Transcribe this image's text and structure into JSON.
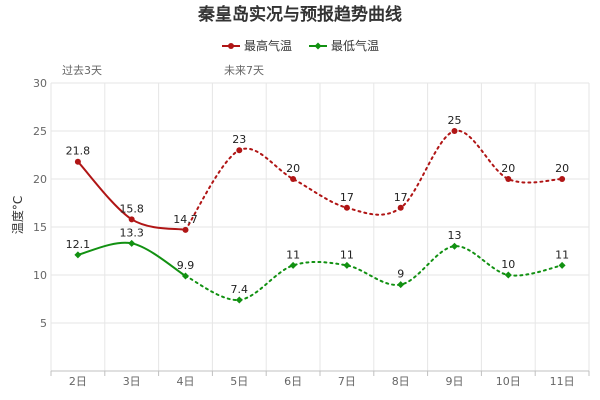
{
  "chart_data": {
    "type": "line",
    "title": "秦皇岛实况与预报趋势曲线",
    "ylabel": "温度°C",
    "xlabel": "",
    "categories": [
      "2日",
      "3日",
      "4日",
      "5日",
      "6日",
      "7日",
      "8日",
      "9日",
      "10日",
      "11日"
    ],
    "ylim": [
      0,
      30
    ],
    "yticks": [
      5,
      10,
      15,
      20,
      25,
      30
    ],
    "grid": true,
    "legend_position": "top-center",
    "periods": [
      {
        "label": "过去3天",
        "days": 3
      },
      {
        "label": "未来7天",
        "days": 7
      }
    ],
    "series": [
      {
        "name": "最高气温",
        "color": "#b01515",
        "values": [
          21.8,
          15.8,
          14.7,
          23,
          20,
          17,
          17,
          25,
          20,
          20
        ],
        "labels": [
          "21.8",
          "15.8",
          "14.7",
          "23",
          "20",
          "17",
          "17",
          "25",
          "20",
          "20"
        ]
      },
      {
        "name": "最低气温",
        "color": "#129112",
        "values": [
          12.1,
          13.3,
          9.9,
          7.4,
          11,
          11,
          9,
          13,
          10,
          11
        ],
        "labels": [
          "12.1",
          "13.3",
          "9.9",
          "7.4",
          "11",
          "11",
          "9",
          "13",
          "10",
          "11"
        ]
      }
    ]
  }
}
